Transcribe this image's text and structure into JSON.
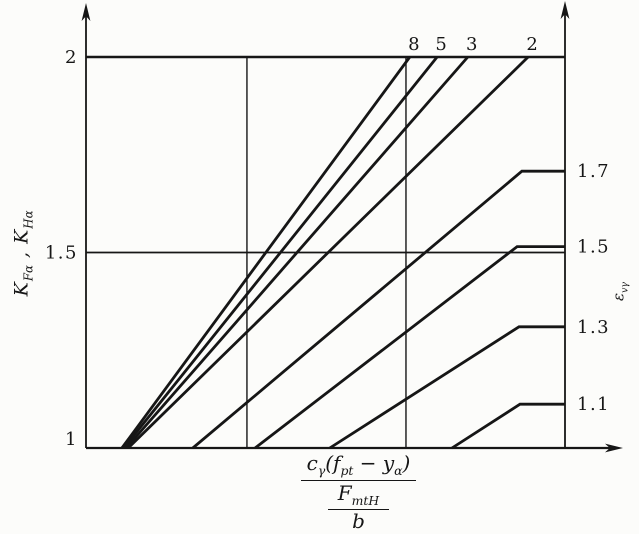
{
  "figure": {
    "left_axis": {
      "K1": "K",
      "K1_sub": "Fα",
      "comma": " , ",
      "K2": "K",
      "K2_sub": "Hα"
    },
    "right_axis": {
      "eps": "ε",
      "eps_sub": "vγ"
    },
    "x_axis": {
      "c": "c",
      "c_sub": "γ",
      "open": "(",
      "f": "f",
      "f_sub": "pt",
      "minus": " − ",
      "y": "y",
      "y_sub": "α",
      "close": ")",
      "F": "F",
      "F_sub": "mtH",
      "b": "b"
    }
  },
  "chart_data": {
    "type": "line",
    "title": "Load distribution factors K_Fα, K_Hα versus c_γ(f_pt − y_α)/(F_mtH/b); curves labelled by contact ratio ε_vγ",
    "ylabel": "K_Fα , K_Hα",
    "right_label": "ε_vγ",
    "xlabel": "c_γ(f_pt − y_α) / (F_mtH / b)",
    "ylim": [
      1,
      2
    ],
    "x_axis_numeric_labels": false,
    "x_unit": "fraction of plot width (x axis carries no numeric scale in the figure)",
    "grid": {
      "h_values": [
        2,
        1.5
      ],
      "v_fractions": [
        0.336,
        0.668
      ]
    },
    "left_ticks": [
      {
        "label": "2",
        "k": 2
      },
      {
        "label": "1.5",
        "k": 1.5
      },
      {
        "label": "1",
        "k": 1
      }
    ],
    "series": [
      {
        "name": "eps_vy_8",
        "label": "8",
        "label_side": "top",
        "points": [
          [
            0.075,
            1
          ],
          [
            0.676,
            2
          ]
        ]
      },
      {
        "name": "eps_vy_5",
        "label": "5",
        "label_side": "top",
        "points": [
          [
            0.079,
            1
          ],
          [
            0.733,
            2
          ]
        ]
      },
      {
        "name": "eps_vy_3",
        "label": "3",
        "label_side": "top",
        "points": [
          [
            0.084,
            1
          ],
          [
            0.797,
            2
          ]
        ]
      },
      {
        "name": "eps_vy_2",
        "label": "2",
        "label_side": "top",
        "points": [
          [
            0.088,
            1
          ],
          [
            0.923,
            2
          ]
        ]
      },
      {
        "name": "eps_vy_1_7",
        "label": "1.7",
        "label_side": "right",
        "points": [
          [
            0.223,
            1
          ],
          [
            0.91,
            1.708
          ],
          [
            1,
            1.708
          ]
        ]
      },
      {
        "name": "eps_vy_1_5",
        "label": "1.5",
        "label_side": "right",
        "points": [
          [
            0.353,
            1
          ],
          [
            0.9,
            1.515
          ],
          [
            1,
            1.515
          ]
        ]
      },
      {
        "name": "eps_vy_1_3",
        "label": "1.3",
        "label_side": "right",
        "points": [
          [
            0.509,
            1
          ],
          [
            0.904,
            1.31
          ],
          [
            1,
            1.31
          ]
        ]
      },
      {
        "name": "eps_vy_1_1",
        "label": "1.1",
        "label_side": "right",
        "points": [
          [
            0.764,
            1
          ],
          [
            0.906,
            1.112
          ],
          [
            1,
            1.112
          ]
        ]
      }
    ],
    "colors": {
      "ink": "#161616",
      "paper": "#fcfcfa"
    }
  }
}
